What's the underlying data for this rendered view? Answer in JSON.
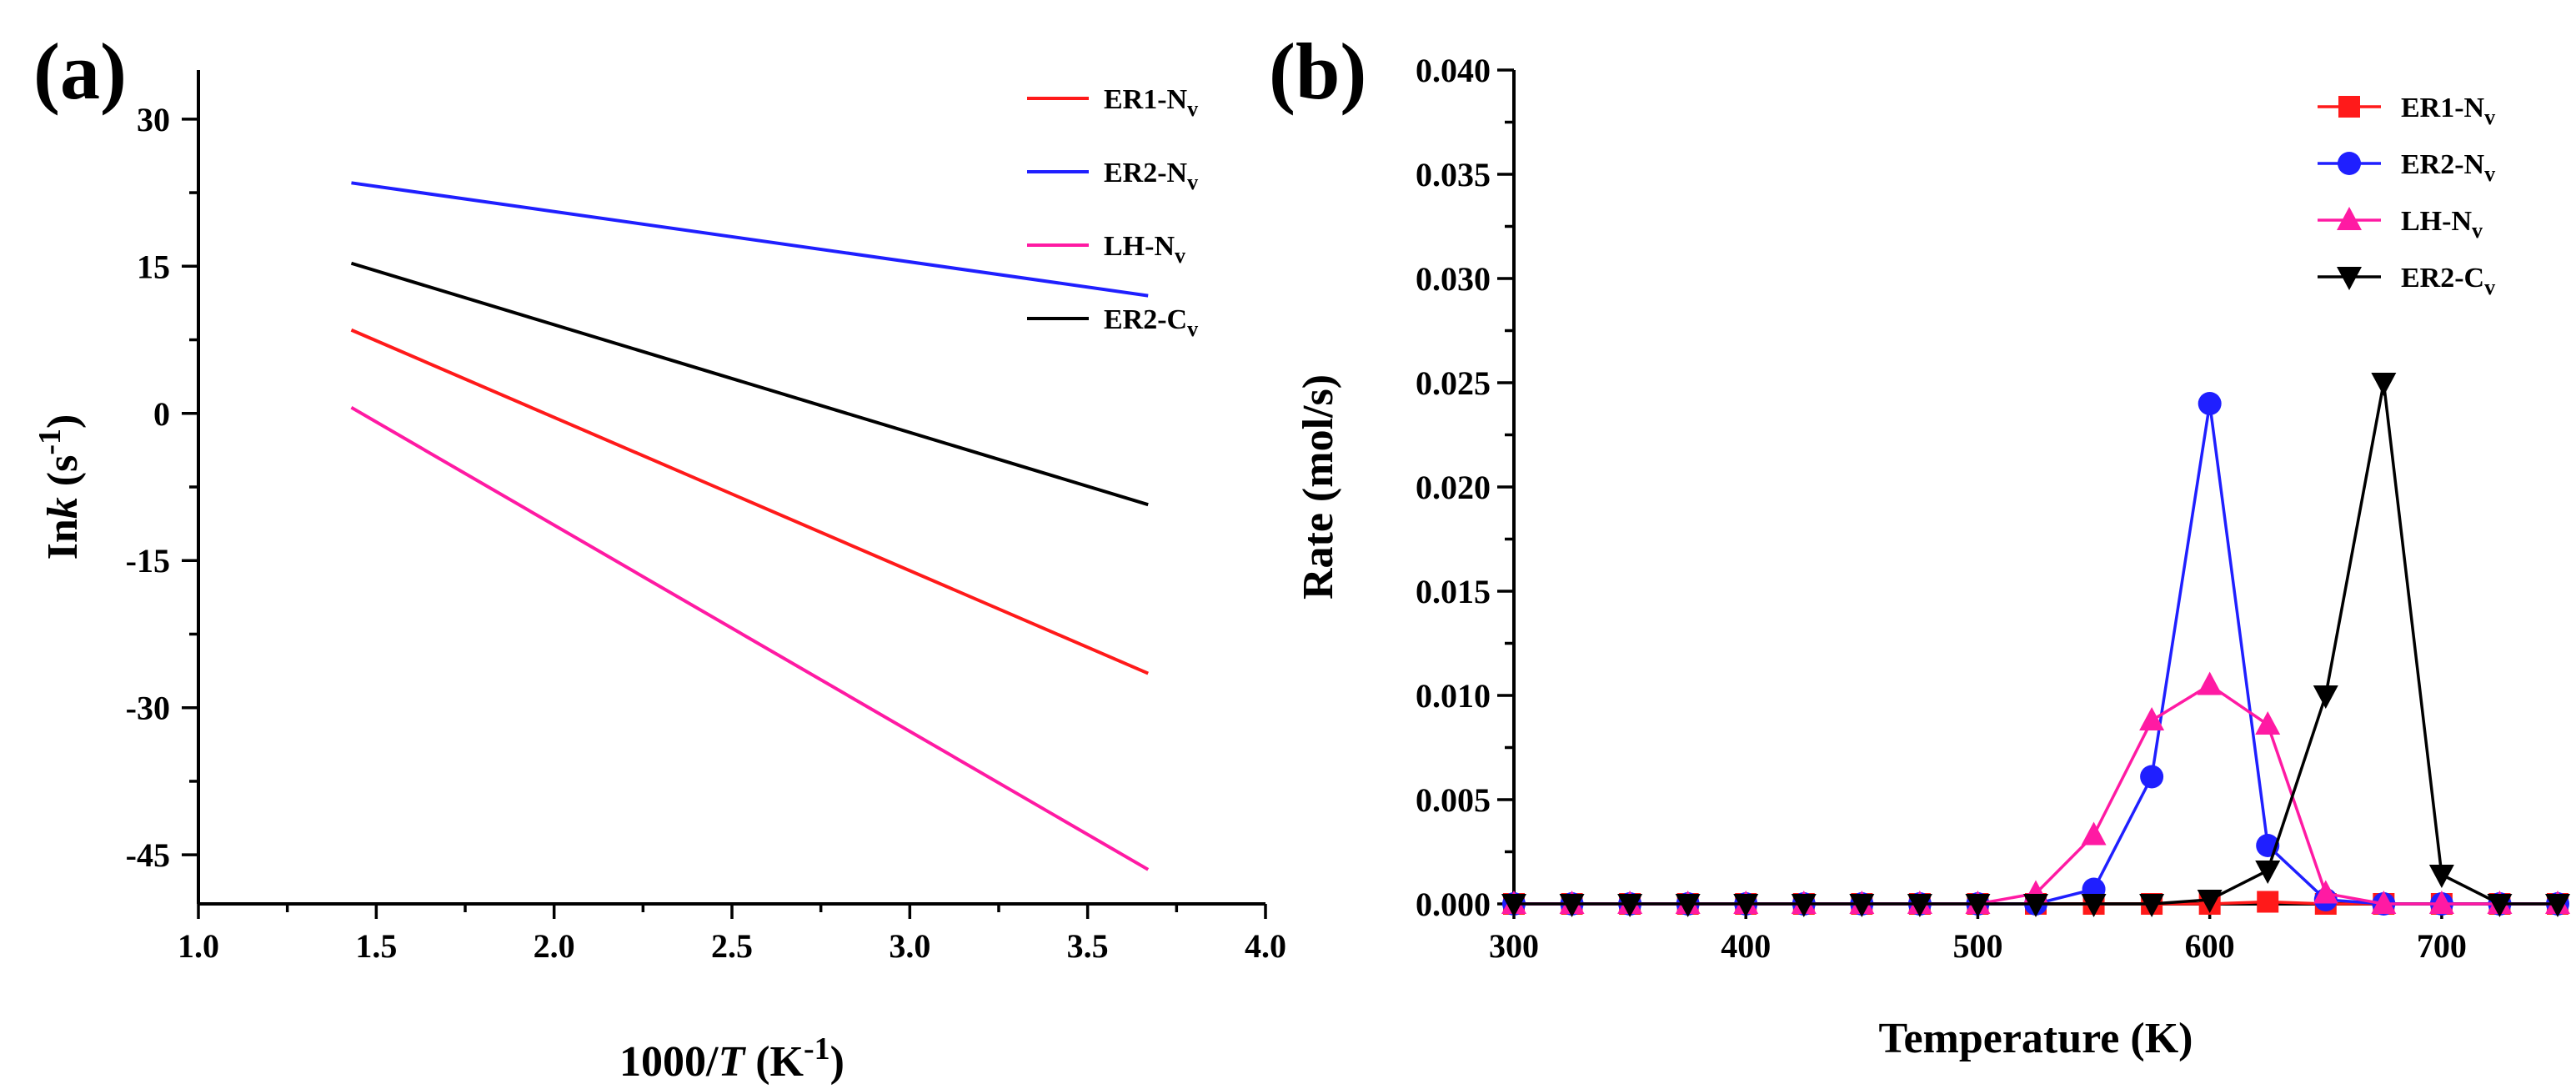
{
  "chart_data": [
    {
      "panel_label": "(a)",
      "type": "line",
      "title": "",
      "xlabel_prefix": "1000/",
      "xlabel_var": "T",
      "xlabel_unit": " (K",
      "xlabel_sup": "-1",
      "xlabel_close": ")",
      "ylabel_prefix": "In",
      "ylabel_var": "k",
      "ylabel_unit": " (s",
      "ylabel_sup": "-1",
      "ylabel_close": ")",
      "xlim": [
        1.0,
        4.0
      ],
      "ylim": [
        -50,
        35
      ],
      "xticks": [
        "1.0",
        "1.5",
        "2.0",
        "2.5",
        "3.0",
        "3.5",
        "4.0"
      ],
      "yticks": [
        "30",
        "15",
        "0",
        "-15",
        "-30",
        "-45"
      ],
      "grid": false,
      "legend_position": "top-right",
      "series": [
        {
          "name": "ER1-N",
          "sub": "v",
          "color": "#ff1a1a",
          "x": [
            1.43,
            3.67
          ],
          "y": [
            8.5,
            -26.5
          ]
        },
        {
          "name": "ER2-N",
          "sub": "v",
          "color": "#1f1fff",
          "x": [
            1.43,
            3.67
          ],
          "y": [
            23.5,
            12.0
          ]
        },
        {
          "name": "LH-N",
          "sub": "v",
          "color": "#ff1aa3",
          "x": [
            1.43,
            3.67
          ],
          "y": [
            0.6,
            -46.5
          ]
        },
        {
          "name": "ER2-C",
          "sub": "v",
          "color": "#000000",
          "x": [
            1.43,
            3.67
          ],
          "y": [
            15.3,
            -9.3
          ]
        }
      ]
    },
    {
      "panel_label": "(b)",
      "type": "line",
      "title": "",
      "xlabel": "Temperature (K)",
      "ylabel": "Rate (mol/s)",
      "xlim": [
        300,
        750
      ],
      "ylim": [
        0,
        0.04
      ],
      "xticks": [
        "300",
        "400",
        "500",
        "600",
        "700"
      ],
      "yticks": [
        "0.000",
        "0.005",
        "0.010",
        "0.015",
        "0.020",
        "0.025",
        "0.030",
        "0.035",
        "0.040"
      ],
      "grid": false,
      "legend_position": "top-right",
      "x": [
        300,
        325,
        350,
        375,
        400,
        425,
        450,
        475,
        500,
        525,
        550,
        575,
        600,
        625,
        650,
        675,
        700,
        725,
        750
      ],
      "series": [
        {
          "name": "ER1-N",
          "sub": "v",
          "color": "#ff1a1a",
          "marker": "square",
          "values": [
            0,
            0,
            0,
            0,
            0,
            0,
            0,
            0,
            0,
            0,
            0,
            0,
            0,
            0.0001,
            0,
            0,
            0,
            0,
            0
          ]
        },
        {
          "name": "ER2-N",
          "sub": "v",
          "color": "#1f1fff",
          "marker": "circle",
          "values": [
            0,
            0,
            0,
            0,
            0,
            0,
            0,
            0,
            0,
            0,
            0.0007,
            0.0061,
            0.024,
            0.0028,
            0.0002,
            0,
            0,
            0,
            0
          ]
        },
        {
          "name": "LH-N",
          "sub": "v",
          "color": "#ff1aa3",
          "marker": "triangle-up",
          "values": [
            0,
            0,
            0,
            0,
            0,
            0,
            0,
            0,
            0,
            0.0005,
            0.0033,
            0.0088,
            0.0105,
            0.0086,
            0.0005,
            0,
            0,
            0,
            0
          ]
        },
        {
          "name": "ER2-C",
          "sub": "v",
          "color": "#000000",
          "marker": "triangle-down",
          "values": [
            0,
            0,
            0,
            0,
            0,
            0,
            0,
            0,
            0,
            0,
            0,
            0,
            0.0002,
            0.0016,
            0.01,
            0.025,
            0.0014,
            0,
            0
          ]
        }
      ]
    }
  ]
}
